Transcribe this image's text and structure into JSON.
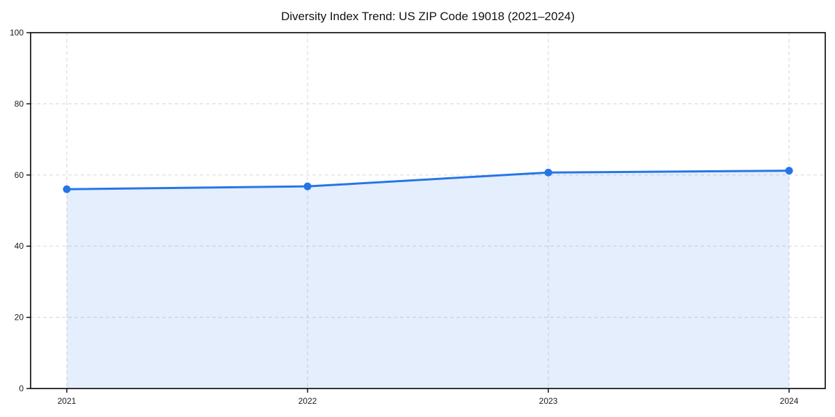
{
  "chart_data": {
    "type": "area",
    "title": "Diversity Index Trend: US ZIP Code 19018 (2021–2024)",
    "x": [
      2021,
      2022,
      2023,
      2024
    ],
    "x_tick_labels": [
      "2021",
      "2022",
      "2023",
      "2024"
    ],
    "series": [
      {
        "name": "Diversity Index",
        "values": [
          56.0,
          56.8,
          60.7,
          61.2
        ]
      }
    ],
    "xlabel": "",
    "ylabel": "",
    "ylim": [
      0,
      100
    ],
    "yticks": [
      0,
      20,
      40,
      60,
      80,
      100
    ],
    "grid": true,
    "grid_style": "dashed",
    "legend_position": "none",
    "x_margin_fraction": 0.0455,
    "colors": {
      "line": "#2575e8",
      "marker": "#2575e8",
      "fill": "rgba(37,117,232,0.12)",
      "grid": "#dcdcdc",
      "axis": "#000000",
      "tick_text": "#1a1a1a",
      "title_text": "#111111",
      "background": "#ffffff"
    }
  }
}
